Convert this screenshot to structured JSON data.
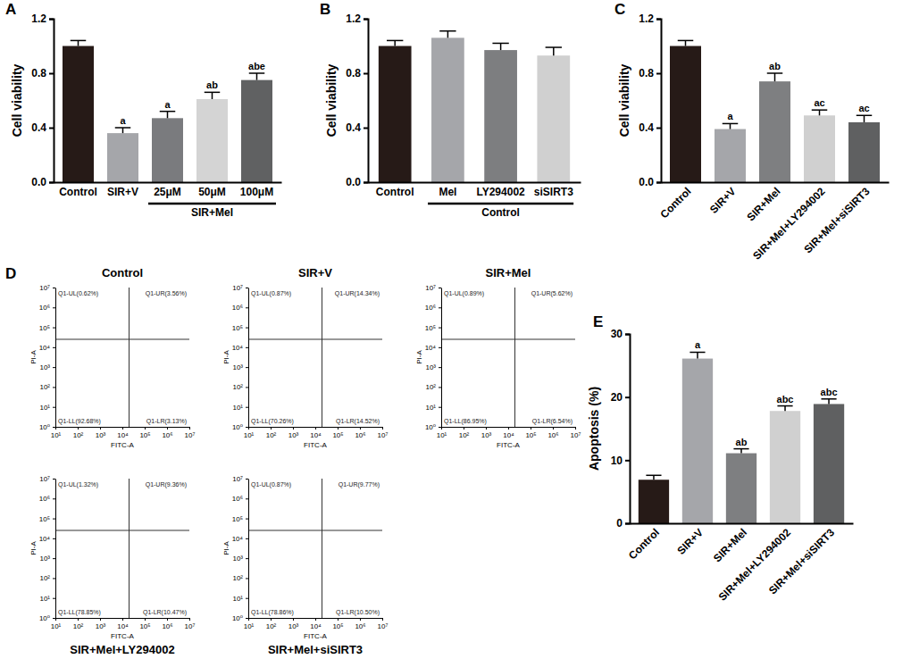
{
  "chart_data": [
    {
      "type": "bar",
      "panel": "A",
      "ylabel": "Cell viability",
      "categories": [
        "Control",
        "SIR+V",
        "25μM",
        "50μM",
        "100μM"
      ],
      "values": [
        1.0,
        0.36,
        0.47,
        0.61,
        0.75
      ],
      "errors": [
        0.04,
        0.04,
        0.05,
        0.05,
        0.05
      ],
      "annotations": [
        null,
        "a",
        "a",
        "ab",
        "abe"
      ],
      "colors": [
        "#261a17",
        "#a5a6aa",
        "#7a7b7e",
        "#d4d4d4",
        "#606162"
      ],
      "group_label": "SIR+Mel",
      "group_categories": [
        "25μM",
        "50μM",
        "100μM"
      ],
      "ylim": [
        0,
        1.2
      ],
      "yticks": [
        {
          "value": 0,
          "label": "0.0"
        },
        0.4,
        0.8,
        1.2
      ]
    },
    {
      "type": "bar",
      "panel": "B",
      "ylabel": "Cell viability",
      "categories": [
        "Control",
        "Mel",
        "LY294002",
        "siSIRT3"
      ],
      "values": [
        1.0,
        1.06,
        0.97,
        0.93
      ],
      "errors": [
        0.04,
        0.05,
        0.05,
        0.06
      ],
      "colors": [
        "#261a17",
        "#a5a6aa",
        "#7d7e80",
        "#d0d0d0"
      ],
      "group_label": "Control",
      "group_categories": [
        "Mel",
        "LY294002",
        "siSIRT3"
      ],
      "ylim": [
        0,
        1.2
      ],
      "yticks": [
        {
          "value": 0,
          "label": "0.0"
        },
        0.4,
        0.8,
        1.2
      ]
    },
    {
      "type": "bar",
      "panel": "C",
      "ylabel": "Cell viability",
      "categories": [
        "Control",
        "SIR+V",
        "SIR+Mel",
        "SIR+Mel+LY294002",
        "SIR+Mel+siSIRT3"
      ],
      "values": [
        1.0,
        0.39,
        0.74,
        0.49,
        0.44
      ],
      "errors": [
        0.04,
        0.04,
        0.06,
        0.04,
        0.05
      ],
      "annotations": [
        null,
        "a",
        "ab",
        "ac",
        "ac"
      ],
      "colors": [
        "#261a17",
        "#a5a6aa",
        "#7e7f81",
        "#d0d0d0",
        "#5f6061"
      ],
      "ylim": [
        0,
        1.2
      ],
      "yticks": [
        {
          "value": 0,
          "label": "0.0"
        },
        0.4,
        0.8,
        1.2
      ]
    },
    {
      "type": "scatter",
      "panel": "D",
      "title": "Control",
      "xlabel": "FITC-A",
      "ylabel": "PI-A",
      "log": true,
      "xlim": [
        10,
        10000000
      ],
      "ylim": [
        1,
        10000000
      ],
      "xticks": [
        {
          "value": 10,
          "label": "10¹"
        },
        {
          "value": 100,
          "label": "10²"
        },
        {
          "value": 1000,
          "label": "10³"
        },
        {
          "value": 10000,
          "label": "10⁴"
        },
        {
          "value": 100000,
          "label": "10⁵"
        },
        {
          "value": 1000000,
          "label": "10⁶"
        },
        {
          "value": 10000000,
          "label": "10⁷"
        }
      ],
      "yticks": [
        {
          "value": 1,
          "label": "10⁰"
        },
        {
          "value": 10,
          "label": "10¹"
        },
        {
          "value": 100,
          "label": "10²"
        },
        {
          "value": 1000,
          "label": "10³"
        },
        {
          "value": 10000,
          "label": "10⁴"
        },
        {
          "value": 100000,
          "label": "10⁵"
        },
        {
          "value": 1000000,
          "label": "10⁶"
        },
        {
          "value": 10000000,
          "label": "10⁷"
        }
      ],
      "gate_x": 20000,
      "gate_y": 25000,
      "quadrants": [
        "Q1-UL(0.62%)",
        "Q1-UR(3.56%)",
        "Q1-LL(92.68%)",
        "Q1-LR(3.13%)"
      ]
    },
    {
      "type": "scatter",
      "title": "SIR+V",
      "xlabel": "FITC-A",
      "ylabel": "PI-A",
      "log": true,
      "xlim": [
        10,
        10000000
      ],
      "ylim": [
        1,
        10000000
      ],
      "xticks": [
        {
          "value": 10,
          "label": "10¹"
        },
        {
          "value": 100,
          "label": "10²"
        },
        {
          "value": 1000,
          "label": "10³"
        },
        {
          "value": 10000,
          "label": "10⁴"
        },
        {
          "value": 100000,
          "label": "10⁵"
        },
        {
          "value": 1000000,
          "label": "10⁶"
        },
        {
          "value": 10000000,
          "label": "10⁷"
        }
      ],
      "yticks": [
        {
          "value": 1,
          "label": "10⁰"
        },
        {
          "value": 10,
          "label": "10¹"
        },
        {
          "value": 100,
          "label": "10²"
        },
        {
          "value": 1000,
          "label": "10³"
        },
        {
          "value": 10000,
          "label": "10⁴"
        },
        {
          "value": 100000,
          "label": "10⁵"
        },
        {
          "value": 1000000,
          "label": "10⁶"
        },
        {
          "value": 10000000,
          "label": "10⁷"
        }
      ],
      "gate_x": 20000,
      "gate_y": 25000,
      "quadrants": [
        "Q1-UL(0.87%)",
        "Q1-UR(14.34%)",
        "Q1-LL(70.26%)",
        "Q1-LR(14.52%)"
      ]
    },
    {
      "type": "scatter",
      "title": "SIR+Mel",
      "xlabel": "FITC-A",
      "ylabel": "PI-A",
      "log": true,
      "xlim": [
        10,
        10000000
      ],
      "ylim": [
        1,
        10000000
      ],
      "xticks": [
        {
          "value": 10,
          "label": "10¹"
        },
        {
          "value": 100,
          "label": "10²"
        },
        {
          "value": 1000,
          "label": "10³"
        },
        {
          "value": 10000,
          "label": "10⁴"
        },
        {
          "value": 100000,
          "label": "10⁵"
        },
        {
          "value": 1000000,
          "label": "10⁶"
        },
        {
          "value": 10000000,
          "label": "10⁷"
        }
      ],
      "yticks": [
        {
          "value": 1,
          "label": "10⁰"
        },
        {
          "value": 10,
          "label": "10¹"
        },
        {
          "value": 100,
          "label": "10²"
        },
        {
          "value": 1000,
          "label": "10³"
        },
        {
          "value": 10000,
          "label": "10⁴"
        },
        {
          "value": 100000,
          "label": "10⁵"
        },
        {
          "value": 1000000,
          "label": "10⁶"
        },
        {
          "value": 10000000,
          "label": "10⁷"
        }
      ],
      "gate_x": 20000,
      "gate_y": 25000,
      "quadrants": [
        "Q1-UL(0.89%)",
        "Q1-UR(5.62%)",
        "Q1-LL(86.95%)",
        "Q1-LR(6.54%)"
      ]
    },
    {
      "type": "scatter",
      "title": "SIR+Mel+LY294002",
      "xlabel": "FITC-A",
      "ylabel": "PI-A",
      "log": true,
      "xlim": [
        10,
        10000000
      ],
      "ylim": [
        1,
        10000000
      ],
      "xticks": [
        {
          "value": 10,
          "label": "10¹"
        },
        {
          "value": 100,
          "label": "10²"
        },
        {
          "value": 1000,
          "label": "10³"
        },
        {
          "value": 10000,
          "label": "10⁴"
        },
        {
          "value": 100000,
          "label": "10⁵"
        },
        {
          "value": 1000000,
          "label": "10⁶"
        },
        {
          "value": 10000000,
          "label": "10⁷"
        }
      ],
      "yticks": [
        {
          "value": 1,
          "label": "10⁰"
        },
        {
          "value": 10,
          "label": "10¹"
        },
        {
          "value": 100,
          "label": "10²"
        },
        {
          "value": 1000,
          "label": "10³"
        },
        {
          "value": 10000,
          "label": "10⁴"
        },
        {
          "value": 100000,
          "label": "10⁵"
        },
        {
          "value": 1000000,
          "label": "10⁶"
        },
        {
          "value": 10000000,
          "label": "10⁷"
        }
      ],
      "gate_x": 20000,
      "gate_y": 25000,
      "quadrants": [
        "Q1-UL(1.32%)",
        "Q1-UR(9.36%)",
        "Q1-LL(78.85%)",
        "Q1-LR(10.47%)"
      ]
    },
    {
      "type": "scatter",
      "title": "SIR+Mel+siSIRT3",
      "xlabel": "FITC-A",
      "ylabel": "PI-A",
      "log": true,
      "xlim": [
        10,
        10000000
      ],
      "ylim": [
        1,
        10000000
      ],
      "xticks": [
        {
          "value": 10,
          "label": "10¹"
        },
        {
          "value": 100,
          "label": "10²"
        },
        {
          "value": 1000,
          "label": "10³"
        },
        {
          "value": 10000,
          "label": "10⁴"
        },
        {
          "value": 100000,
          "label": "10⁵"
        },
        {
          "value": 1000000,
          "label": "10⁶"
        },
        {
          "value": 10000000,
          "label": "10⁷"
        }
      ],
      "yticks": [
        {
          "value": 1,
          "label": "10⁰"
        },
        {
          "value": 10,
          "label": "10¹"
        },
        {
          "value": 100,
          "label": "10²"
        },
        {
          "value": 1000,
          "label": "10³"
        },
        {
          "value": 10000,
          "label": "10⁴"
        },
        {
          "value": 100000,
          "label": "10⁵"
        },
        {
          "value": 1000000,
          "label": "10⁶"
        },
        {
          "value": 10000000,
          "label": "10⁷"
        }
      ],
      "gate_x": 20000,
      "gate_y": 25000,
      "quadrants": [
        "Q1-UL(0.87%)",
        "Q1-UR(9.77%)",
        "Q1-LL(78.86%)",
        "Q1-LR(10.50%)"
      ]
    },
    {
      "type": "bar",
      "panel": "E",
      "ylabel": "Apoptosis (%)",
      "categories": [
        "Control",
        "SIR+V",
        "SIR+Mel",
        "SIR+Mel+LY294002",
        "SIR+Mel+siSIRT3"
      ],
      "values": [
        6.9,
        26.1,
        11.1,
        17.8,
        18.9
      ],
      "errors": [
        0.7,
        1.0,
        0.7,
        0.8,
        0.8
      ],
      "annotations": [
        null,
        "a",
        "ab",
        "abc",
        "abc"
      ],
      "colors": [
        "#261a17",
        "#a5a6aa",
        "#7e7f81",
        "#d0d0d0",
        "#5f6061"
      ],
      "ylim": [
        0,
        30
      ],
      "yticks": [
        0,
        10,
        20,
        30
      ]
    }
  ]
}
